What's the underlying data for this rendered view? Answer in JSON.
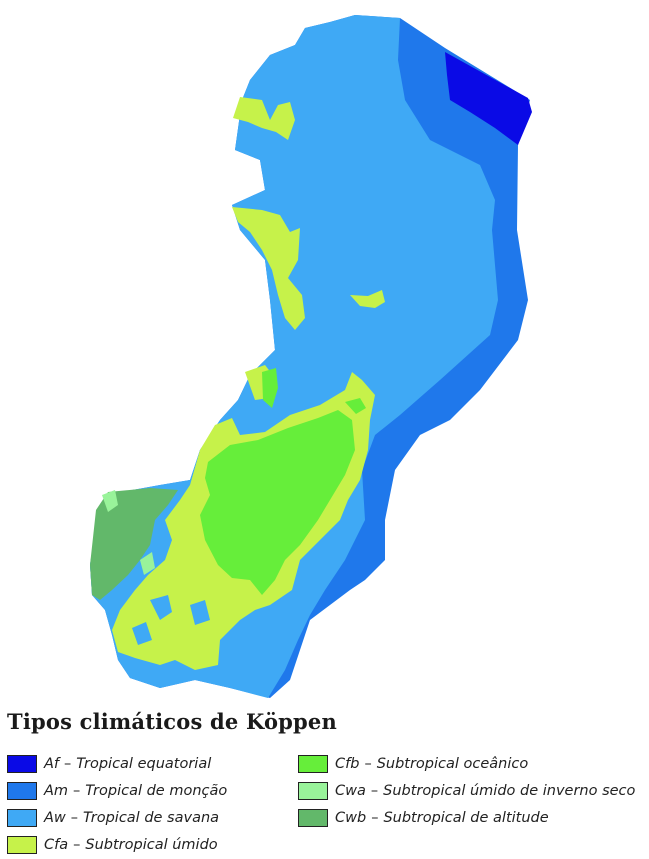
{
  "legend": {
    "title": "Tipos climáticos de Köppen",
    "items": [
      {
        "code": "Af",
        "description": "Tropical equatorial",
        "color": "#0a0ae6"
      },
      {
        "code": "Am",
        "description": "Tropical de monção",
        "color": "#1f78eb"
      },
      {
        "code": "Aw",
        "description": "Tropical de savana",
        "color": "#3fa9f5"
      },
      {
        "code": "Cfa",
        "description": "Subtropical úmido",
        "color": "#c6f24a"
      },
      {
        "code": "Cfb",
        "description": "Subtropical oceânico",
        "color": "#66ee3a"
      },
      {
        "code": "Cwa",
        "description": "Subtropical úmido de inverno seco",
        "color": "#99f39a"
      },
      {
        "code": "Cwb",
        "description": "Subtropical de altitude",
        "color": "#62b86a"
      }
    ]
  }
}
